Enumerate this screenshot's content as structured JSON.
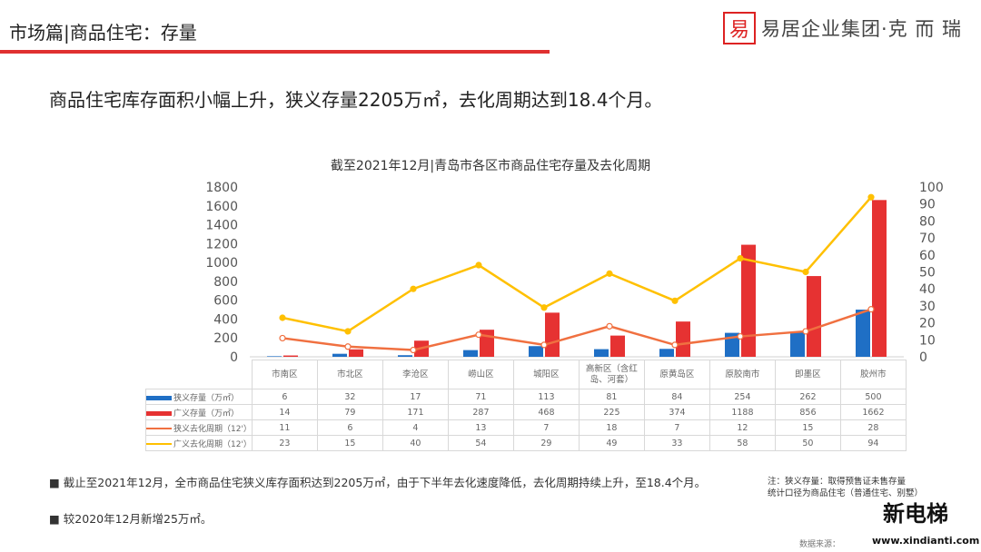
{
  "header": {
    "title": "市场篇|商品住宅：存量",
    "logo_seal": "易居",
    "logo_text": "易居企业集团·克 而 瑞"
  },
  "headline": "商品住宅库存面积小幅上升，狭义存量2205万㎡，去化周期达到18.4个月。",
  "chart_data": {
    "type": "bar+line",
    "title": "截至2021年12月|青岛市各区市商品住宅存量及去化周期",
    "categories": [
      "市南区",
      "市北区",
      "李沧区",
      "崂山区",
      "城阳区",
      "高新区（含红岛、河套）",
      "原黄岛区",
      "原胶南市",
      "即墨区",
      "胶州市"
    ],
    "left_axis": {
      "range": [
        0,
        1800
      ],
      "ticks": [
        "0",
        "200",
        "400",
        "600",
        "800",
        "1000",
        "1200",
        "1400",
        "1600",
        "1800"
      ]
    },
    "right_axis": {
      "range": [
        0,
        100
      ],
      "ticks": [
        "0",
        "10",
        "20",
        "30",
        "40",
        "50",
        "60",
        "70",
        "80",
        "90",
        "100"
      ]
    },
    "grid": false,
    "series": [
      {
        "name": "狭义存量（万㎡）",
        "type": "bar",
        "axis": "left",
        "color": "#1f6fc5",
        "values": [
          6,
          32,
          17,
          71,
          113,
          81,
          84,
          254,
          262,
          500
        ]
      },
      {
        "name": "广义存量（万㎡）",
        "type": "bar",
        "axis": "left",
        "color": "#e63232",
        "values": [
          14,
          79,
          171,
          287,
          468,
          225,
          374,
          1188,
          856,
          1662
        ]
      },
      {
        "name": "狭义去化周期（12'）",
        "type": "line",
        "axis": "right",
        "color": "#f07040",
        "values": [
          11,
          6,
          4,
          13,
          7,
          18,
          7,
          12,
          15,
          28
        ]
      },
      {
        "name": "广义去化周期（12'）",
        "type": "line",
        "axis": "right",
        "color": "#ffc000",
        "values": [
          23,
          15,
          40,
          54,
          29,
          49,
          33,
          58,
          50,
          94
        ]
      }
    ]
  },
  "bullets": [
    "截止至2021年12月，全市商品住宅狭义库存面积达到2205万㎡，由于下半年去化速度降低，去化周期持续上升，至18.4个月。",
    "较2020年12月新增25万㎡。"
  ],
  "note": [
    "注：狭义存量：取得预售证未售存量",
    "统计口径为商品住宅（普通住宅、别墅）"
  ],
  "source": "数据来源：",
  "watermark": {
    "brand": "新电梯",
    "url": "www.xindianti.com"
  }
}
